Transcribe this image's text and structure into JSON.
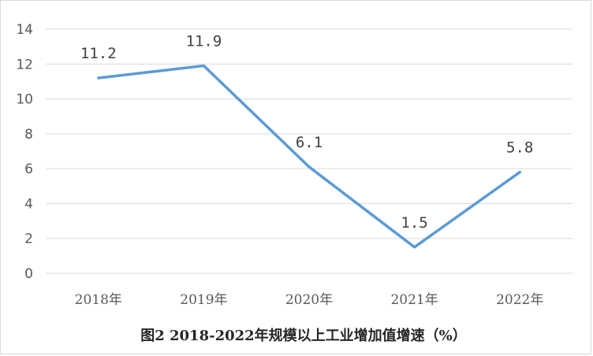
{
  "chart_data": {
    "type": "line",
    "categories": [
      "2018年",
      "2019年",
      "2020年",
      "2021年",
      "2022年"
    ],
    "series": [
      {
        "values": [
          11.2,
          11.9,
          6.1,
          1.5,
          5.8
        ]
      }
    ],
    "data_labels": [
      "11.2",
      "11.9",
      "6.1",
      "1.5",
      "5.8"
    ],
    "y_ticks": [
      "0",
      "2",
      "4",
      "6",
      "8",
      "10",
      "12",
      "14"
    ],
    "ylim": [
      0,
      14
    ],
    "grid": true,
    "legend": "none",
    "line_color": "#5b9bd5",
    "grid_color": "#d9d9d9",
    "caption": "图2  2018-2022年规模以上工业增加值增速（%）"
  }
}
